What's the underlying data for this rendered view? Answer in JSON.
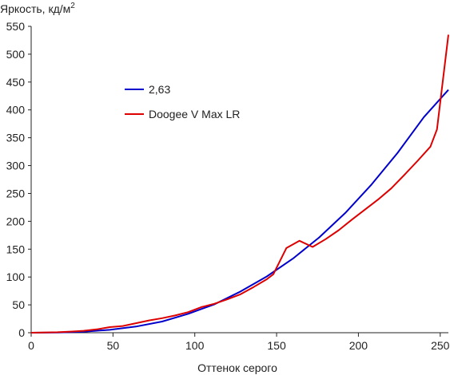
{
  "chart_data": {
    "type": "line",
    "ylabel": "Яркость, кд/м",
    "ylabel_superscript": "2",
    "xlabel": "Оттенок серого",
    "xlim": [
      0,
      255
    ],
    "ylim": [
      0,
      550
    ],
    "x_ticks": [
      0,
      50,
      100,
      150,
      200,
      250
    ],
    "y_ticks": [
      0,
      50,
      100,
      150,
      200,
      250,
      300,
      350,
      400,
      450,
      500,
      550
    ],
    "grid": false,
    "legend_position": "upper-left",
    "series": [
      {
        "name": "2,63",
        "color": "#0000cc",
        "x": [
          0,
          16,
          32,
          48,
          64,
          80,
          96,
          112,
          128,
          144,
          160,
          176,
          192,
          208,
          224,
          240,
          255
        ],
        "y": [
          0,
          0.3,
          1.9,
          5.2,
          11,
          20,
          34,
          51,
          74,
          101,
          133,
          171,
          215,
          266,
          323,
          387,
          436
        ]
      },
      {
        "name": "Doogee V Max LR",
        "color": "#dd0000",
        "x": [
          0,
          16,
          24,
          32,
          40,
          48,
          56,
          64,
          72,
          80,
          88,
          96,
          104,
          112,
          120,
          128,
          136,
          144,
          148,
          156,
          164,
          172,
          180,
          188,
          196,
          204,
          212,
          220,
          228,
          236,
          244,
          248,
          255
        ],
        "y": [
          0,
          0.8,
          2,
          3.5,
          6,
          10,
          12,
          17,
          22,
          26,
          31,
          37,
          46,
          52,
          60,
          69,
          82,
          96,
          105,
          152,
          165,
          154,
          168,
          184,
          203,
          221,
          239,
          259,
          283,
          308,
          334,
          365,
          535
        ]
      }
    ]
  }
}
